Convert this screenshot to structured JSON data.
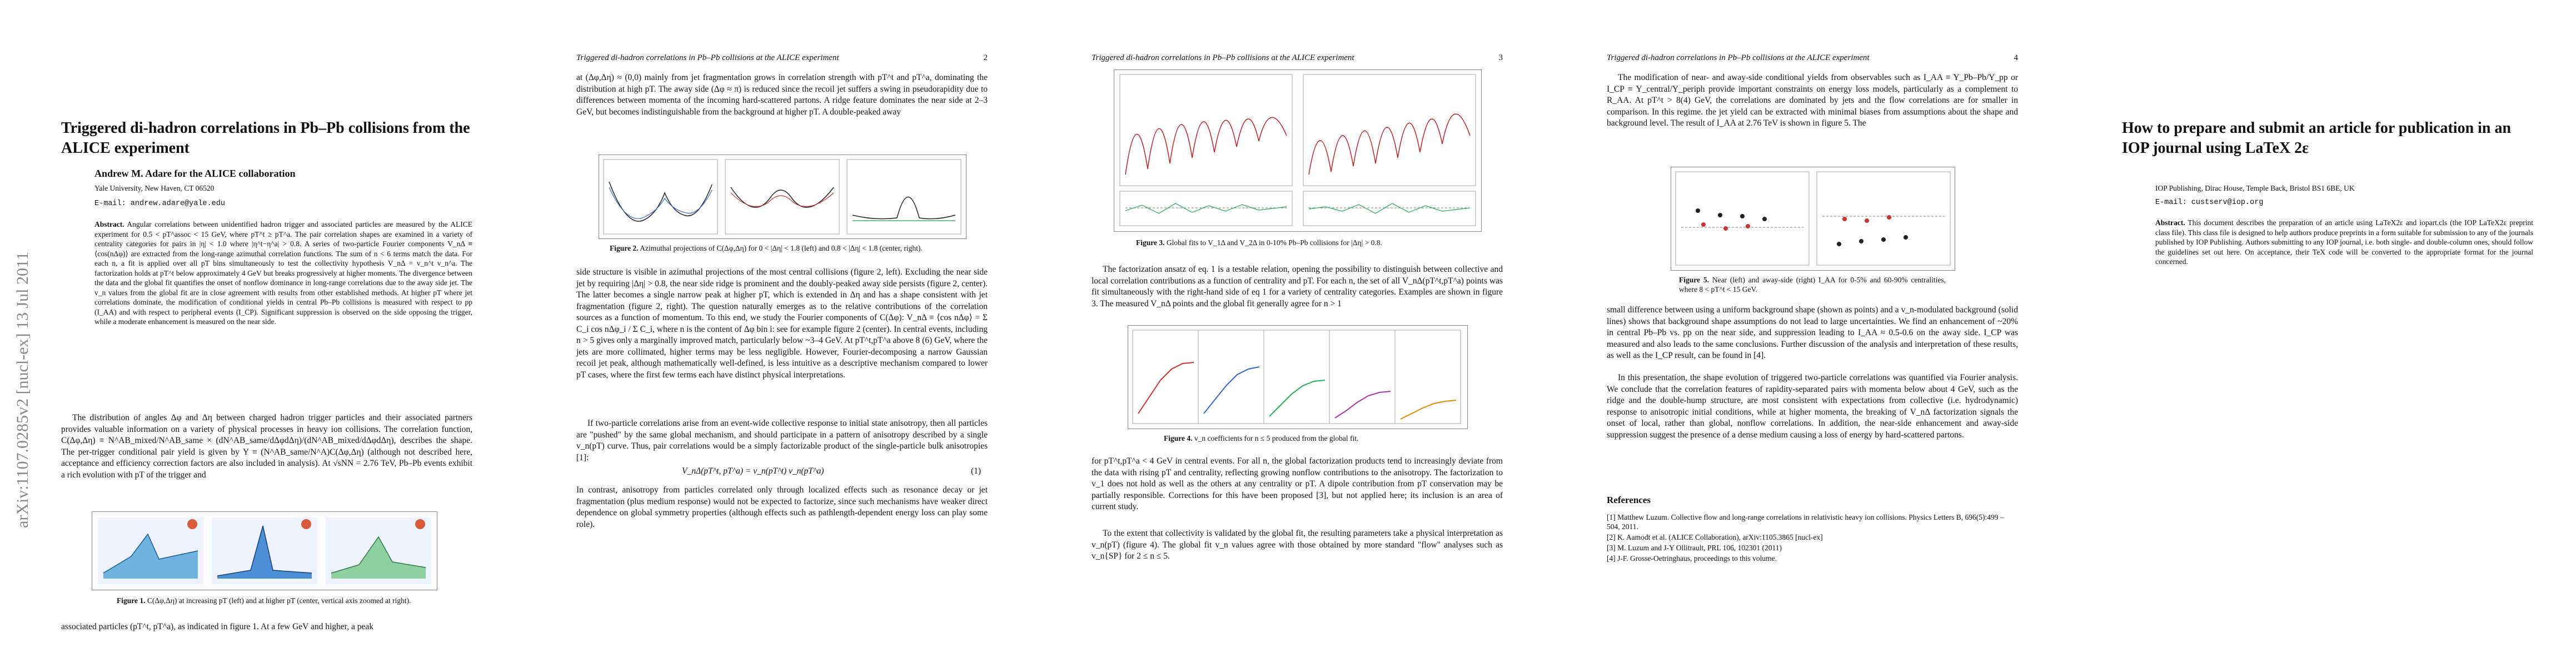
{
  "arxiv_stamp": "arXiv:1107.0285v2 [nucl-ex] 13 Jul 2011",
  "running_header": "Triggered di-hadron correlations in Pb–Pb collisions at the ALICE experiment",
  "page_numbers": [
    "2",
    "3",
    "4"
  ],
  "page1": {
    "title": "Triggered di-hadron correlations in Pb–Pb collisions from the ALICE experiment",
    "author": "Andrew M. Adare for the ALICE collaboration",
    "affiliation": "Yale University, New Haven, CT 06520",
    "email": "E-mail: andrew.adare@yale.edu",
    "abstract_label": "Abstract.",
    "abstract": "Angular correlations between unidentified hadron trigger and associated particles are measured by the ALICE experiment for 0.5 < pT^assoc < 15 GeV, where pT^t ≥ pT^a. The pair correlation shapes are examined in a variety of centrality categories for pairs in |η| < 1.0 where |η^t−η^a| > 0.8. A series of two-particle Fourier components V_nΔ ≡ ⟨cos(nΔφ)⟩ are extracted from the long-range azimuthal correlation functions. The sum of n < 6 terms match the data. For each n, a fit is applied over all pT bins simultaneously to test the collectivity hypothesis V_nΔ = v_n^t v_n^a. The factorization holds at pT^t below approximately 4 GeV but breaks progressively at higher moments. The divergence between the data and the global fit quantifies the onset of nonflow dominance in long-range correlations due to the away side jet. The v_n values from the global fit are in close agreement with results from other established methods. At higher pT where jet correlations dominate, the modification of conditional yields in central Pb–Pb collisions is measured with respect to pp (I_AA) and with respect to peripheral events (I_CP). Significant suppression is observed on the side opposing the trigger, while a moderate enhancement is measured on the near side.",
    "body": "The distribution of angles Δφ and Δη between charged hadron trigger particles and their associated partners provides valuable information on a variety of physical processes in heavy ion collisions. The correlation function, C(Δφ,Δη) ≡ N^AB_mixed/N^AB_same × (dN^AB_same/dΔφdΔη)/(dN^AB_mixed/dΔφdΔη), describes the shape. The per-trigger conditional pair yield is given by Y ≡ (N^AB_same/N^A)C(Δφ,Δη) (although not described here, acceptance and efficiency correction factors are also included in analysis). At √sNN = 2.76 TeV, Pb–Pb events exhibit a rich evolution with pT of the trigger and",
    "fig1_caption_label": "Figure 1.",
    "fig1_caption": "C(Δφ,Δη) at increasing pT (left) and at higher pT (center, vertical axis zoomed at right).",
    "after_fig": "associated particles (pT^t, pT^a), as indicated in figure 1. At a few GeV and higher, a peak"
  },
  "page2": {
    "para1": "at (Δφ,Δη) ≈ (0,0) mainly from jet fragmentation grows in correlation strength with pT^t and pT^a, dominating the distribution at high pT. The away side (Δφ ≈ π) is reduced since the recoil jet suffers a swing in pseudorapidity due to differences between momenta of the incoming hard-scattered partons. A ridge feature dominates the near side at 2–3 GeV, but becomes indistinguishable from the background at higher pT. A double-peaked away",
    "fig2_caption_label": "Figure 2.",
    "fig2_caption": "Azimuthal projections of C(Δφ,Δη) for 0 < |Δη| < 1.8 (left) and 0.8 < |Δη| < 1.8 (center, right).",
    "para2": "side structure is visible in azimuthal projections of the most central collisions (figure 2, left). Excluding the near side jet by requiring |Δη| > 0.8, the near side ridge is prominent and the doubly-peaked away side persists (figure 2, center). The latter becomes a single narrow peak at higher pT, which is extended in Δη and has a shape consistent with jet fragmentation (figure 2, right). The question naturally emerges as to the relative contributions of the correlation sources as a function of momentum. To this end, we study the Fourier components of C(Δφ): V_nΔ ≡ ⟨cos nΔφ⟩ = Σ C_i cos nΔφ_i / Σ C_i, where n is the content of Δφ bin i: see for example figure 2 (center). In central events, including n > 5 gives only a marginally improved match, particularly below ~3–4 GeV. At pT^t,pT^a above 8 (6) GeV, where the jets are more collimated, higher terms may be less negligible. However, Fourier-decomposing a narrow Gaussian recoil jet peak, although mathematically well-defined, is less intuitive as a descriptive mechanism compared to lower pT cases, where the first few terms each have distinct physical interpretations.",
    "para3": "If two-particle correlations arise from an event-wide collective response to initial state anisotropy, then all particles are \"pushed\" by the same global mechanism, and should participate in a pattern of anisotropy described by a single v_n(pT) curve. Thus, pair correlations would be a simply factorizable product of the single-particle bulk anisotropies [1]:",
    "equation": "V_nΔ(pT^t, pT^a) = v_n(pT^t) v_n(pT^a)",
    "equation_number": "(1)",
    "para4": "In contrast, anisotropy from particles correlated only through localized effects such as resonance decay or jet fragmentation (plus medium response) would not be expected to factorize, since such mechanisms have weaker direct dependence on global symmetry properties (although effects such as pathlength-dependent energy loss can play some role)."
  },
  "page3": {
    "fig3_caption_label": "Figure 3.",
    "fig3_caption": "Global fits to V_1Δ and V_2Δ in 0-10% Pb–Pb collisions for |Δη| > 0.8.",
    "para1": "The factorization ansatz of eq. 1 is a testable relation, opening the possibility to distinguish between collective and local correlation contributions as a function of centrality and pT. For each n, the set of all V_nΔ(pT^t,pT^a) points was fit simultaneously with the right-hand side of eq 1 for a variety of centrality categories. Examples are shown in figure 3. The measured V_nΔ points and the global fit generally agree for n > 1",
    "fig4_caption_label": "Figure 4.",
    "fig4_caption": "v_n coefficients for n ≤ 5 produced from the global fit.",
    "para2": "for pT^t,pT^a < 4 GeV in central events. For all n, the global factorization products tend to increasingly deviate from the data with rising pT and centrality, reflecting growing nonflow contributions to the anisotropy. The factorization to v_1 does not hold as well as the others at any centrality or pT. A dipole contribution from pT conservation may be partially responsible. Corrections for this have been proposed [3], but not applied here; its inclusion is an area of current study.",
    "para3": "To the extent that collectivity is validated by the global fit, the resulting parameters take a physical interpretation as v_n(pT) (figure 4). The global fit v_n values agree with those obtained by more standard \"flow\" analyses such as v_n{SP} for 2 ≤ n ≤ 5."
  },
  "page4": {
    "para1": "The modification of near- and away-side conditional yields from observables such as I_AA ≡ Y_Pb–Pb/Y_pp or I_CP ≡ Y_central/Y_periph provide important constraints on energy loss models, particularly as a complement to R_AA. At pT^t > 8(4) GeV, the correlations are dominated by jets and the flow correlations are for smaller in comparison. In this regime. the jet yield can be extracted with minimal biases from assumptions about the shape and background level. The result of I_AA at 2.76 TeV is shown in figure 5. The",
    "fig5_caption_label": "Figure 5.",
    "fig5_caption": "Near (left) and away-side (right) I_AA for 0-5% and 60-90% centralities, where 8 < pT^t < 15 GeV.",
    "para2": "small difference between using a uniform background shape (shown as points) and a v_n-modulated background (solid lines) shows that background shape assumptions do not lead to large uncertainties. We find an enhancement of ~20% in central Pb–Pb vs. pp on the near side, and suppression leading to I_AA ≈ 0.5-0.6 on the away side. I_CP was measured and also leads to the same conclusions. Further discussion of the analysis and interpretation of these results, as well as the I_CP result, can be found in [4].",
    "para3": "In this presentation, the shape evolution of triggered two-particle correlations was quantified via Fourier analysis. We conclude that the correlation features of rapidity-separated pairs with momenta below about 4 GeV, such as the ridge and the double-hump structure, are most consistent with expectations from collective (i.e. hydrodynamic) response to anisotropic initial conditions, while at higher momenta, the breaking of V_nΔ factorization signals the onset of local, rather than global, nonflow correlations. In addition, the near-side enhancement and away-side suppression suggest the presence of a dense medium causing a loss of energy by hard-scattered partons.",
    "references_title": "References",
    "references": [
      "[1] Matthew Luzum. Collective flow and long-range correlations in relativistic heavy ion collisions. Physics Letters B, 696(5):499 – 504, 2011.",
      "[2] K. Aamodt et al. (ALICE Collaboration), arXiv:1105.3865 [nucl-ex]",
      "[3] M. Luzum and J-Y Ollitrault, PRL 106, 102301 (2011)",
      "[4] J-F. Grosse-Oetringhaus, proceedings to this volume."
    ]
  },
  "page5": {
    "title": "How to prepare and submit an article for publication in an IOP journal using LaTeX 2ε",
    "affiliation": "IOP Publishing, Dirac House, Temple Back, Bristol BS1 6BE, UK",
    "email": "E-mail: custserv@iop.org",
    "abstract_label": "Abstract.",
    "abstract": "This document describes the preparation of an article using LaTeX2ε and iopart.cls (the IOP LaTeX2ε preprint class file). This class file is designed to help authors produce preprints in a form suitable for submission to any of the journals published by IOP Publishing. Authors submitting to any IOP journal, i.e. both single- and double-column ones, should follow the guidelines set out here. On acceptance, their TeX code will be converted to the appropriate format for the journal concerned."
  }
}
